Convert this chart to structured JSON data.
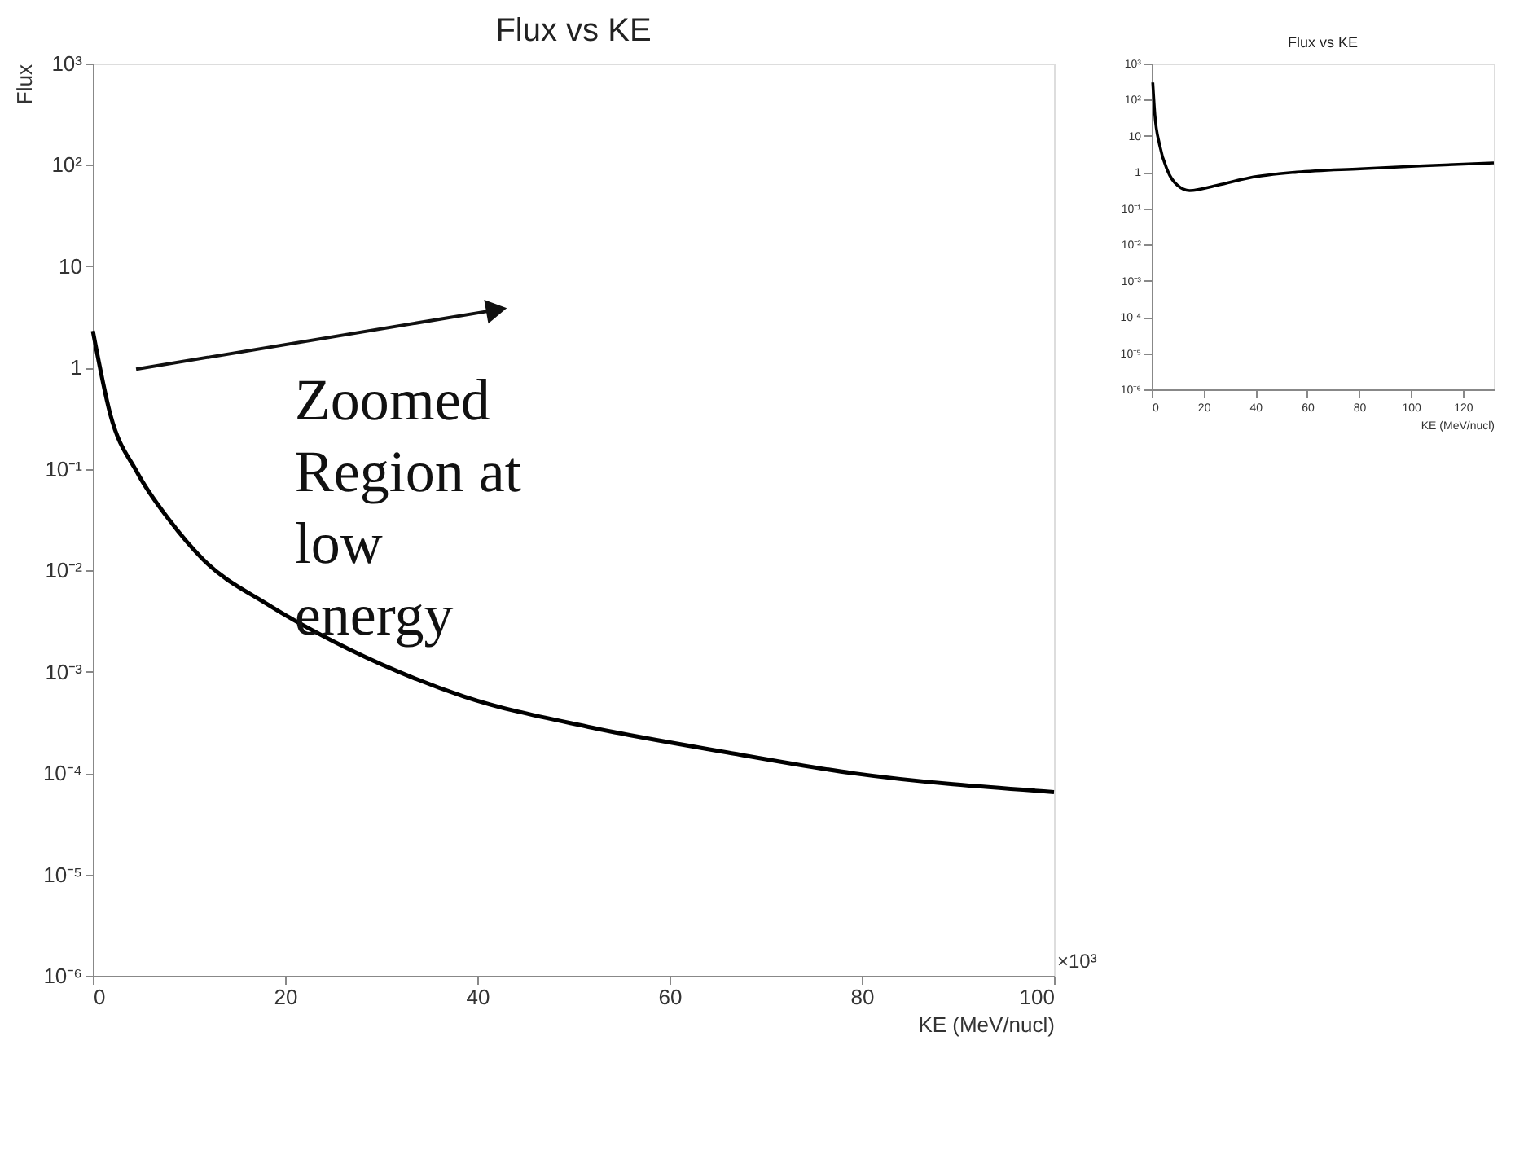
{
  "chart_data": [
    {
      "type": "line",
      "title": "Flux vs KE",
      "xlabel": "KE (MeV/nucl)",
      "ylabel": "Flux",
      "log": "y",
      "grid": false,
      "legend": false,
      "line_style": "solid",
      "xlim": [
        0,
        100
      ],
      "xticks": [
        0,
        20,
        40,
        60,
        80,
        100
      ],
      "ylim": [
        1e-06,
        1000
      ],
      "yticks": [
        {
          "value": 1000,
          "label": "10³"
        },
        {
          "value": 100,
          "label": "10²"
        },
        10,
        1,
        {
          "value": 0.1,
          "label": "10⁻¹"
        },
        {
          "value": 0.01,
          "label": "10⁻²"
        },
        {
          "value": 0.001,
          "label": "10⁻³"
        },
        {
          "value": 0.0001,
          "label": "10⁻⁴"
        },
        {
          "value": 1e-05,
          "label": "10⁻⁵"
        },
        {
          "value": 1e-06,
          "label": "10⁻⁶"
        }
      ],
      "annotations": [
        "Zoomed\nRegion at\nlow\nenergy",
        "×10³"
      ],
      "series": [
        {
          "color": "#000000",
          "x": [
            0,
            1.8,
            4.6,
            8,
            11.4,
            18.2,
            25,
            31.8,
            38.6,
            52,
            66,
            79,
            100
          ],
          "values": [
            2.3,
            0.35,
            0.093,
            0.031,
            0.013,
            0.0046,
            0.002,
            0.001,
            0.00057,
            0.00028,
            0.00016,
            0.0001,
            6.5e-05
          ]
        }
      ]
    },
    {
      "type": "line",
      "title": "Flux vs KE",
      "xlabel": "KE (MeV/nucl)",
      "log": "y",
      "grid": false,
      "legend": false,
      "line_style": "solid",
      "xlim": [
        0,
        132
      ],
      "xticks": [
        0,
        20,
        40,
        60,
        80,
        100,
        120
      ],
      "ylim": [
        1e-06,
        1000
      ],
      "yticks": [
        {
          "value": 1000,
          "label": "10³"
        },
        {
          "value": 100,
          "label": "10²"
        },
        10,
        1,
        {
          "value": 0.1,
          "label": "10⁻¹"
        },
        {
          "value": 0.01,
          "label": "10⁻²"
        },
        {
          "value": 0.001,
          "label": "10⁻³"
        },
        {
          "value": 0.0001,
          "label": "10⁻⁴"
        },
        {
          "value": 1e-05,
          "label": "10⁻⁵"
        },
        {
          "value": 1e-06,
          "label": "10⁻⁶"
        }
      ],
      "series": [
        {
          "color": "#000000",
          "x": [
            0.4,
            1.2,
            3,
            6.1,
            9.8,
            14.6,
            25.6,
            37.8,
            56,
            80.5,
            105,
            132
          ],
          "values": [
            300,
            39,
            5.8,
            1.1,
            0.44,
            0.31,
            0.44,
            0.7,
            1.0,
            1.24,
            1.5,
            1.8
          ]
        }
      ]
    }
  ]
}
